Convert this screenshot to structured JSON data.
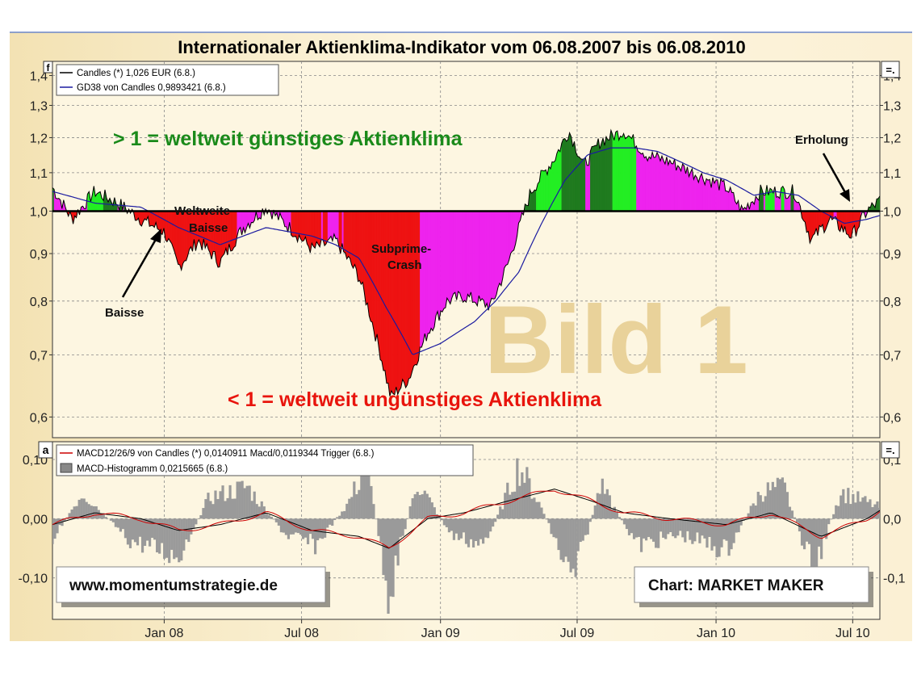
{
  "title": "Internationaler Aktienklima-Indikator vom 06.08.2007 bis 06.08.2010",
  "upper_panel": {
    "corner_icon": "f",
    "right_icon": "=.",
    "legend": [
      {
        "label": "Candles (*) 1,026 EUR (6.8.)",
        "color": "#000000"
      },
      {
        "label": "GD38 von Candles 0,9893421 (6.8.)",
        "color": "#1a1aa0"
      }
    ],
    "y_ticks_left": [
      "1,4",
      "1,3",
      "1,2",
      "1,1",
      "1,0",
      "0,9",
      "0,8",
      "0,7",
      "0,6"
    ],
    "y_ticks_right": [
      "1,4",
      "1,3",
      "1,2",
      "1,1",
      "1,0",
      "0,9",
      "0,8",
      "0,7",
      "0,6"
    ],
    "annotations": {
      "good": "> 1 = weltweit günstiges Aktienklima",
      "bad": "< 1 = weltweit ungünstiges Aktienklima",
      "weltweite_line1": "Weltweite",
      "weltweite_line2": "Baisse",
      "subprime_line1": "Subprime-",
      "subprime_line2": "Crash",
      "baisse": "Baisse",
      "erholung": "Erholung",
      "watermark": "Bild 1"
    }
  },
  "lower_panel": {
    "corner_icon": "a",
    "right_icon": "=.",
    "legend": [
      {
        "label": "MACD12/26/9 von Candles (*) 0,0140911 Macd/0,0119344 Trigger (6.8.)",
        "color": "#cc0000"
      },
      {
        "label": "MACD-Histogramm 0,0215665 (6.8.)",
        "color": "#888888"
      }
    ],
    "y_ticks_left": [
      "0,10",
      "0,00",
      "-0,10"
    ],
    "y_ticks_right": [
      "0,1",
      "0,0",
      "-0,1"
    ],
    "website": "www.momentumstrategie.de",
    "credit": "Chart: MARKET MAKER"
  },
  "x_ticks": [
    "Jan 08",
    "Jul 08",
    "Jan 09",
    "Jul 09",
    "Jan 10",
    "Jul 10"
  ],
  "colors": {
    "background": "#fdf6e1",
    "above_gd38": "#1e7a1e",
    "above_gd38_light": "#22ee22",
    "below_gd38": "#ee1111",
    "between": "#ee22ee",
    "gd38_line": "#1a1aa0",
    "macd": "#cc0000",
    "histogram": "#9a9a9a"
  },
  "chart_data": {
    "type": "area",
    "x_range": [
      "2007-08-06",
      "2010-08-06"
    ],
    "ylim": [
      0.57,
      1.45
    ],
    "log_scale": true,
    "reference_line": 1.0,
    "series": [
      {
        "name": "Candles (*)",
        "points": [
          [
            "2007-08-06",
            1.06
          ],
          [
            "2007-09-01",
            0.98
          ],
          [
            "2007-10-01",
            1.05
          ],
          [
            "2007-11-01",
            1.02
          ],
          [
            "2007-12-01",
            0.98
          ],
          [
            "2008-01-01",
            0.95
          ],
          [
            "2008-01-20",
            0.87
          ],
          [
            "2008-02-15",
            0.93
          ],
          [
            "2008-03-15",
            0.88
          ],
          [
            "2008-04-15",
            0.96
          ],
          [
            "2008-05-15",
            1.01
          ],
          [
            "2008-06-15",
            0.96
          ],
          [
            "2008-07-15",
            0.91
          ],
          [
            "2008-08-15",
            0.93
          ],
          [
            "2008-09-15",
            0.85
          ],
          [
            "2008-10-10",
            0.72
          ],
          [
            "2008-10-27",
            0.63
          ],
          [
            "2008-11-20",
            0.66
          ],
          [
            "2008-12-15",
            0.74
          ],
          [
            "2009-01-10",
            0.8
          ],
          [
            "2009-02-01",
            0.81
          ],
          [
            "2009-03-09",
            0.79
          ],
          [
            "2009-04-01",
            0.88
          ],
          [
            "2009-05-01",
            1.05
          ],
          [
            "2009-06-01",
            1.14
          ],
          [
            "2009-06-20",
            1.22
          ],
          [
            "2009-07-10",
            1.12
          ],
          [
            "2009-08-01",
            1.19
          ],
          [
            "2009-09-01",
            1.22
          ],
          [
            "2009-10-01",
            1.15
          ],
          [
            "2009-11-01",
            1.13
          ],
          [
            "2009-12-01",
            1.1
          ],
          [
            "2010-01-15",
            1.06
          ],
          [
            "2010-02-05",
            1.0
          ],
          [
            "2010-03-01",
            1.05
          ],
          [
            "2010-04-15",
            1.05
          ],
          [
            "2010-05-07",
            0.93
          ],
          [
            "2010-06-01",
            0.98
          ],
          [
            "2010-06-30",
            0.94
          ],
          [
            "2010-07-20",
            1.0
          ],
          [
            "2010-08-06",
            1.026
          ]
        ]
      },
      {
        "name": "GD38 von Candles",
        "points": [
          [
            "2007-08-06",
            1.05
          ],
          [
            "2007-10-01",
            1.02
          ],
          [
            "2007-12-01",
            1.01
          ],
          [
            "2008-01-20",
            0.96
          ],
          [
            "2008-03-15",
            0.92
          ],
          [
            "2008-05-15",
            0.96
          ],
          [
            "2008-07-15",
            0.94
          ],
          [
            "2008-08-15",
            0.92
          ],
          [
            "2008-09-15",
            0.89
          ],
          [
            "2008-10-20",
            0.79
          ],
          [
            "2008-11-25",
            0.7
          ],
          [
            "2009-01-01",
            0.72
          ],
          [
            "2009-02-15",
            0.76
          ],
          [
            "2009-03-15",
            0.8
          ],
          [
            "2009-04-15",
            0.86
          ],
          [
            "2009-05-15",
            0.97
          ],
          [
            "2009-06-15",
            1.08
          ],
          [
            "2009-07-15",
            1.15
          ],
          [
            "2009-08-15",
            1.17
          ],
          [
            "2009-09-15",
            1.17
          ],
          [
            "2009-10-15",
            1.16
          ],
          [
            "2009-11-15",
            1.13
          ],
          [
            "2009-12-15",
            1.1
          ],
          [
            "2010-01-15",
            1.08
          ],
          [
            "2010-02-20",
            1.04
          ],
          [
            "2010-03-20",
            1.05
          ],
          [
            "2010-04-20",
            1.04
          ],
          [
            "2010-05-20",
            1.0
          ],
          [
            "2010-06-20",
            0.97
          ],
          [
            "2010-07-20",
            0.98
          ],
          [
            "2010-08-06",
            0.9893421
          ]
        ]
      }
    ],
    "macd": {
      "ylim": [
        -0.17,
        0.13
      ],
      "macd_last": 0.0140911,
      "trigger_last": 0.0119344,
      "histogram_last": 0.0215665,
      "macd_points": [
        [
          "2007-08-06",
          -0.01
        ],
        [
          "2007-10-01",
          0.01
        ],
        [
          "2007-12-01",
          0.0
        ],
        [
          "2008-01-20",
          -0.02
        ],
        [
          "2008-03-15",
          -0.01
        ],
        [
          "2008-05-15",
          0.01
        ],
        [
          "2008-07-15",
          -0.02
        ],
        [
          "2008-09-15",
          -0.03
        ],
        [
          "2008-10-25",
          -0.05
        ],
        [
          "2008-12-15",
          0.0
        ],
        [
          "2009-02-01",
          0.01
        ],
        [
          "2009-04-01",
          0.03
        ],
        [
          "2009-06-01",
          0.05
        ],
        [
          "2009-07-20",
          0.03
        ],
        [
          "2009-09-01",
          0.01
        ],
        [
          "2009-11-01",
          0.0
        ],
        [
          "2010-01-15",
          -0.01
        ],
        [
          "2010-03-15",
          0.01
        ],
        [
          "2010-05-20",
          -0.03
        ],
        [
          "2010-07-20",
          0.0
        ],
        [
          "2010-08-06",
          0.014
        ]
      ],
      "histogram_points": [
        [
          "2007-08-06",
          -0.04
        ],
        [
          "2007-09-15",
          0.05
        ],
        [
          "2007-11-15",
          -0.04
        ],
        [
          "2008-01-20",
          -0.07
        ],
        [
          "2008-03-01",
          0.04
        ],
        [
          "2008-04-20",
          0.06
        ],
        [
          "2008-06-10",
          -0.03
        ],
        [
          "2008-07-20",
          -0.05
        ],
        [
          "2008-09-01",
          0.03
        ],
        [
          "2008-09-25",
          0.1
        ],
        [
          "2008-10-25",
          -0.14
        ],
        [
          "2008-12-01",
          0.07
        ],
        [
          "2009-01-15",
          -0.03
        ],
        [
          "2009-03-01",
          -0.05
        ],
        [
          "2009-04-15",
          0.1
        ],
        [
          "2009-05-15",
          0.02
        ],
        [
          "2009-06-25",
          -0.12
        ],
        [
          "2009-08-01",
          0.06
        ],
        [
          "2009-09-20",
          -0.05
        ],
        [
          "2009-11-15",
          -0.03
        ],
        [
          "2010-01-15",
          -0.06
        ],
        [
          "2010-03-01",
          0.05
        ],
        [
          "2010-04-01",
          0.06
        ],
        [
          "2010-05-10",
          -0.1
        ],
        [
          "2010-06-15",
          0.05
        ],
        [
          "2010-08-06",
          0.0216
        ]
      ]
    }
  }
}
